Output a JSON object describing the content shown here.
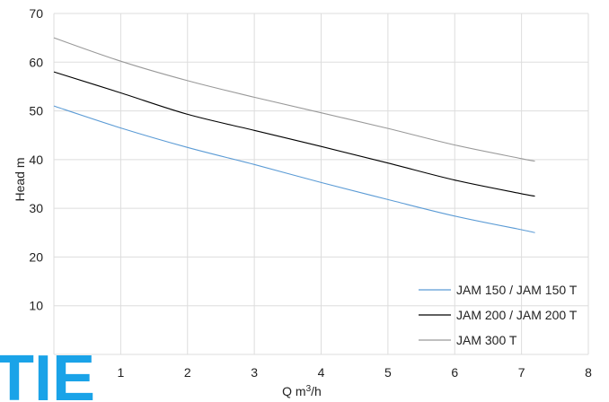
{
  "chart_data": {
    "type": "line",
    "title": "",
    "xlabel": "Q m³/h",
    "xlabel_parts": {
      "base": "Q m",
      "sup": "3",
      "rest": "/h"
    },
    "ylabel": "Head m",
    "xlim": [
      0,
      8
    ],
    "ylim": [
      0,
      70
    ],
    "x_ticks": [
      1,
      2,
      3,
      4,
      5,
      6,
      7,
      8
    ],
    "y_ticks": [
      10,
      20,
      30,
      40,
      50,
      60,
      70
    ],
    "grid": true,
    "legend_position": "bottom-right",
    "series": [
      {
        "name": "JAM 150 / JAM 150 T",
        "color": "#5b9bd5",
        "x": [
          0,
          1,
          2,
          3,
          4,
          5,
          6,
          7,
          7.2
        ],
        "y": [
          51,
          46.5,
          42.5,
          39,
          35.3,
          31.8,
          28.4,
          25.6,
          25
        ]
      },
      {
        "name": "JAM 200 / JAM 200 T",
        "color": "#000000",
        "x": [
          0,
          1,
          2,
          3,
          4,
          5,
          6,
          7,
          7.2
        ],
        "y": [
          58,
          53.7,
          49.3,
          46,
          42.7,
          39.3,
          35.8,
          33,
          32.5
        ]
      },
      {
        "name": "JAM 300 T",
        "color": "#999999",
        "x": [
          0,
          1,
          2,
          3,
          4,
          5,
          6,
          7,
          7.2
        ],
        "y": [
          65,
          60.2,
          56.2,
          52.8,
          49.6,
          46.4,
          43,
          40.2,
          39.7
        ]
      }
    ]
  },
  "logo": {
    "text": "TIE",
    "color": "#1aa3e8"
  }
}
